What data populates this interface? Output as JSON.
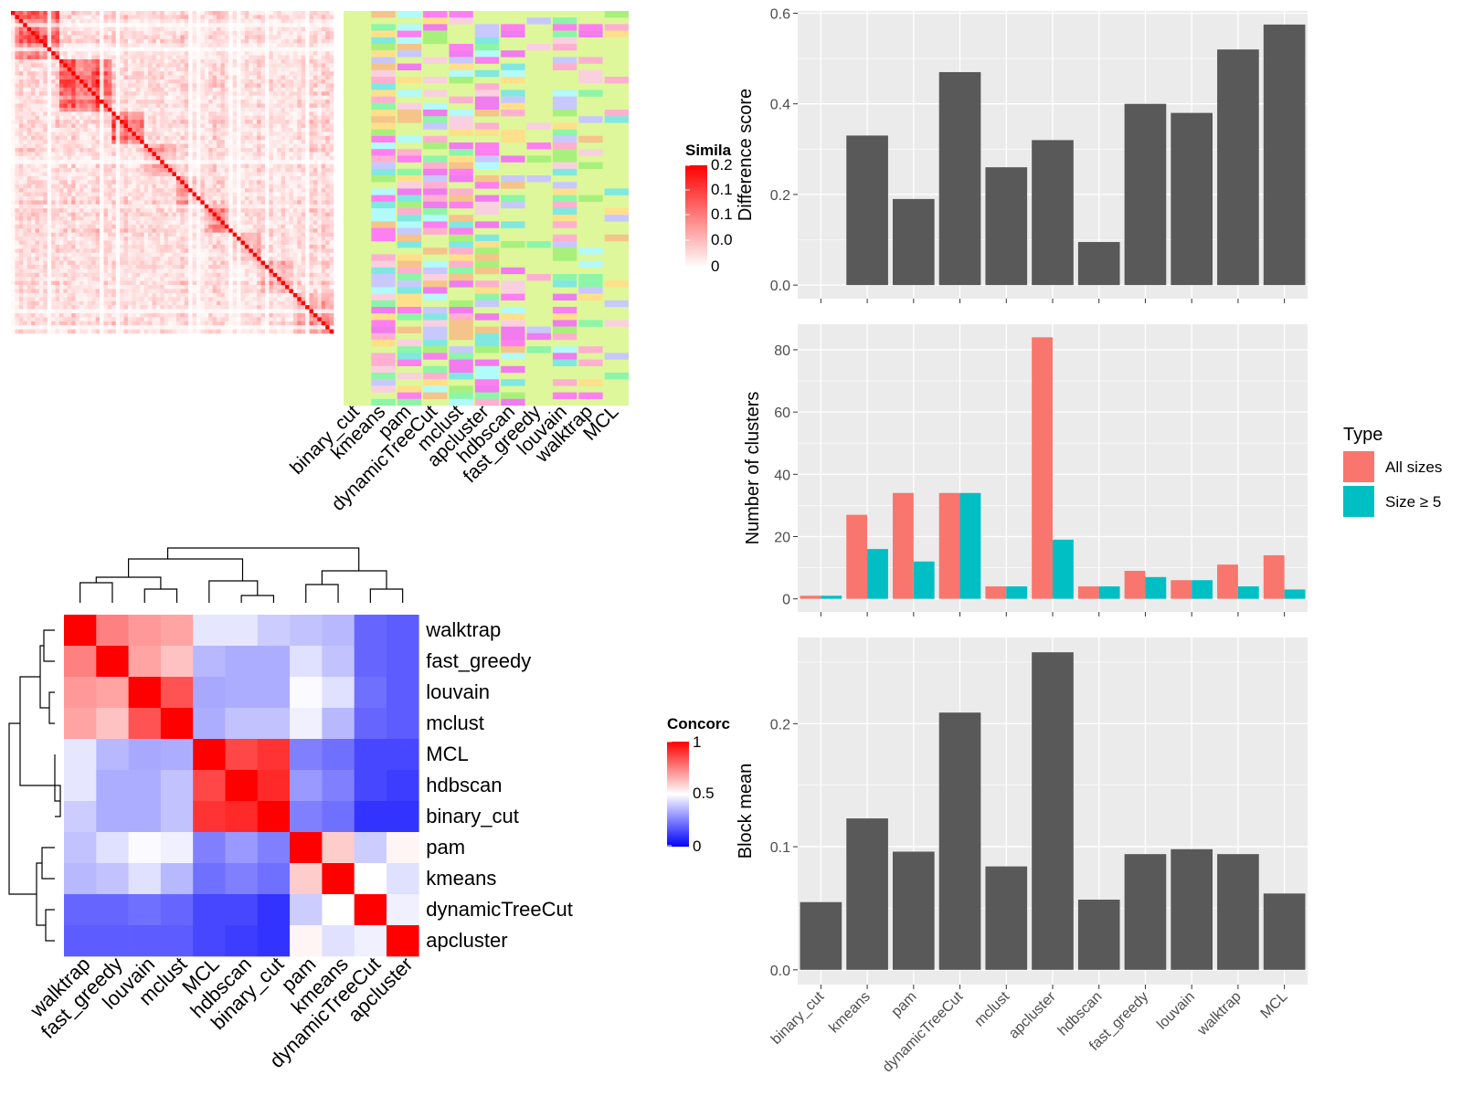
{
  "similarity_panel": {
    "legend_title": "Simila",
    "legend_ticks": [
      "0.2",
      "0.1",
      "0.1",
      "0.0",
      "0"
    ],
    "methods": [
      "binary_cut",
      "kmeans",
      "pam",
      "dynamicTreeCut",
      "mclust",
      "apcluster",
      "hdbscan",
      "fast_greedy",
      "louvain",
      "walktrap",
      "MCL"
    ],
    "colors": {
      "high": "#ff0000",
      "low": "#ffffff",
      "background": "#ddf79a"
    }
  },
  "concordance_panel": {
    "legend_title": "Concorc",
    "legend_ticks": [
      "1",
      "0.5",
      "0"
    ],
    "colors": {
      "high": "#ff0000",
      "mid": "#ffffff",
      "low": "#0000ff"
    }
  },
  "legend": {
    "title": "Type",
    "items": [
      {
        "label": "All sizes",
        "color": "#f8766d"
      },
      {
        "label": "Size ≥ 5",
        "color": "#00bfc4"
      }
    ]
  },
  "chart_data": [
    {
      "type": "heatmap",
      "row_labels": [
        "walktrap",
        "fast_greedy",
        "louvain",
        "mclust",
        "MCL",
        "hdbscan",
        "binary_cut",
        "pam",
        "kmeans",
        "dynamicTreeCut",
        "apcluster"
      ],
      "col_labels": [
        "walktrap",
        "fast_greedy",
        "louvain",
        "mclust",
        "MCL",
        "hdbscan",
        "binary_cut",
        "pam",
        "kmeans",
        "dynamicTreeCut",
        "apcluster"
      ],
      "values": [
        [
          1.0,
          0.75,
          0.7,
          0.68,
          0.45,
          0.45,
          0.4,
          0.38,
          0.36,
          0.2,
          0.18
        ],
        [
          0.75,
          1.0,
          0.68,
          0.62,
          0.36,
          0.34,
          0.34,
          0.44,
          0.38,
          0.2,
          0.18
        ],
        [
          0.7,
          0.68,
          1.0,
          0.84,
          0.33,
          0.34,
          0.34,
          0.49,
          0.44,
          0.22,
          0.18
        ],
        [
          0.68,
          0.62,
          0.84,
          1.0,
          0.34,
          0.38,
          0.38,
          0.47,
          0.36,
          0.2,
          0.18
        ],
        [
          0.45,
          0.36,
          0.33,
          0.34,
          1.0,
          0.86,
          0.9,
          0.25,
          0.22,
          0.14,
          0.14
        ],
        [
          0.45,
          0.34,
          0.34,
          0.38,
          0.86,
          1.0,
          0.92,
          0.3,
          0.25,
          0.14,
          0.12
        ],
        [
          0.4,
          0.34,
          0.34,
          0.38,
          0.9,
          0.92,
          1.0,
          0.25,
          0.22,
          0.1,
          0.1
        ],
        [
          0.38,
          0.44,
          0.49,
          0.47,
          0.25,
          0.3,
          0.25,
          1.0,
          0.6,
          0.4,
          0.52
        ],
        [
          0.36,
          0.38,
          0.44,
          0.36,
          0.22,
          0.25,
          0.22,
          0.6,
          1.0,
          0.5,
          0.44
        ],
        [
          0.2,
          0.2,
          0.22,
          0.2,
          0.14,
          0.14,
          0.1,
          0.4,
          0.5,
          1.0,
          0.47
        ],
        [
          0.18,
          0.18,
          0.18,
          0.18,
          0.14,
          0.12,
          0.1,
          0.52,
          0.44,
          0.47,
          1.0
        ]
      ],
      "legend_title": "Concorc",
      "range": [
        0,
        1
      ]
    },
    {
      "type": "bar",
      "categories": [
        "binary_cut",
        "kmeans",
        "pam",
        "dynamicTreeCut",
        "mclust",
        "apcluster",
        "hdbscan",
        "fast_greedy",
        "louvain",
        "walktrap",
        "MCL"
      ],
      "values": [
        0.0,
        0.33,
        0.19,
        0.47,
        0.26,
        0.32,
        0.095,
        0.4,
        0.38,
        0.52,
        0.575
      ],
      "ylabel": "Difference score",
      "ylim": [
        -0.03,
        0.605
      ],
      "yticks": [
        0.0,
        0.2,
        0.4,
        0.6
      ],
      "ytick_labels": [
        "0.0",
        "0.2",
        "0.4",
        "0.6"
      ],
      "grid": true
    },
    {
      "type": "bar",
      "categories": [
        "binary_cut",
        "kmeans",
        "pam",
        "dynamicTreeCut",
        "mclust",
        "apcluster",
        "hdbscan",
        "fast_greedy",
        "louvain",
        "walktrap",
        "MCL"
      ],
      "series": [
        {
          "name": "All sizes",
          "values": [
            1,
            27,
            34,
            34,
            4,
            84,
            4,
            9,
            6,
            11,
            14
          ]
        },
        {
          "name": "Size ≥ 5",
          "values": [
            1,
            16,
            12,
            34,
            4,
            19,
            4,
            7,
            6,
            4,
            3
          ]
        }
      ],
      "ylabel": "Number of clusters",
      "ylim": [
        -4.2,
        88.2
      ],
      "yticks": [
        0,
        20,
        40,
        60,
        80
      ],
      "ytick_labels": [
        "0",
        "20",
        "40",
        "60",
        "80"
      ],
      "grid": true,
      "legend_position": "right"
    },
    {
      "type": "bar",
      "categories": [
        "binary_cut",
        "kmeans",
        "pam",
        "dynamicTreeCut",
        "mclust",
        "apcluster",
        "hdbscan",
        "fast_greedy",
        "louvain",
        "walktrap",
        "MCL"
      ],
      "values": [
        0.055,
        0.123,
        0.096,
        0.209,
        0.084,
        0.258,
        0.057,
        0.094,
        0.098,
        0.094,
        0.062
      ],
      "ylabel": "Block mean",
      "ylim": [
        -0.012,
        0.27
      ],
      "yticks": [
        0.0,
        0.1,
        0.2
      ],
      "ytick_labels": [
        "0.0",
        "0.1",
        "0.2"
      ],
      "grid": true
    }
  ]
}
